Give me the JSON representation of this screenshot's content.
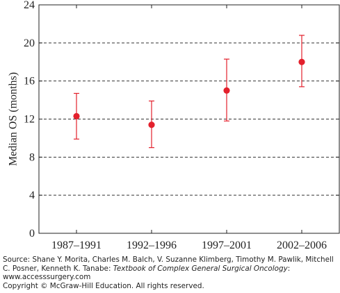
{
  "chart_data": {
    "type": "scatter",
    "ylabel": "Median OS (months)",
    "xlabel": "",
    "categories": [
      "1987–1991",
      "1992–1996",
      "1997–2001",
      "2002–2006"
    ],
    "series": [
      {
        "values": [
          12.3,
          11.4,
          15.0,
          18.0
        ],
        "lower": [
          9.9,
          9.0,
          11.8,
          15.4
        ],
        "upper": [
          14.7,
          13.9,
          18.3,
          20.8
        ]
      }
    ],
    "ylim": [
      0,
      24
    ],
    "yticks": [
      "0",
      "4",
      "8",
      "12",
      "16",
      "20",
      "24"
    ],
    "grid": "horizontal dashed",
    "marker_color": "#e3202c",
    "errorbar_color": "#e3202c"
  },
  "credit": {
    "source_prefix": "Source: Shane Y. Morita, Charles M. Balch, V. Suzanne Klimberg, Timothy M. Pawlik, Mitchell C. Posner, Kenneth K. Tanabe: ",
    "book_title": "Textbook of Complex General Surgical Oncology",
    "source_suffix": ": www.accesssurgery.com",
    "copyright": "Copyright © McGraw-Hill Education. All rights reserved."
  }
}
